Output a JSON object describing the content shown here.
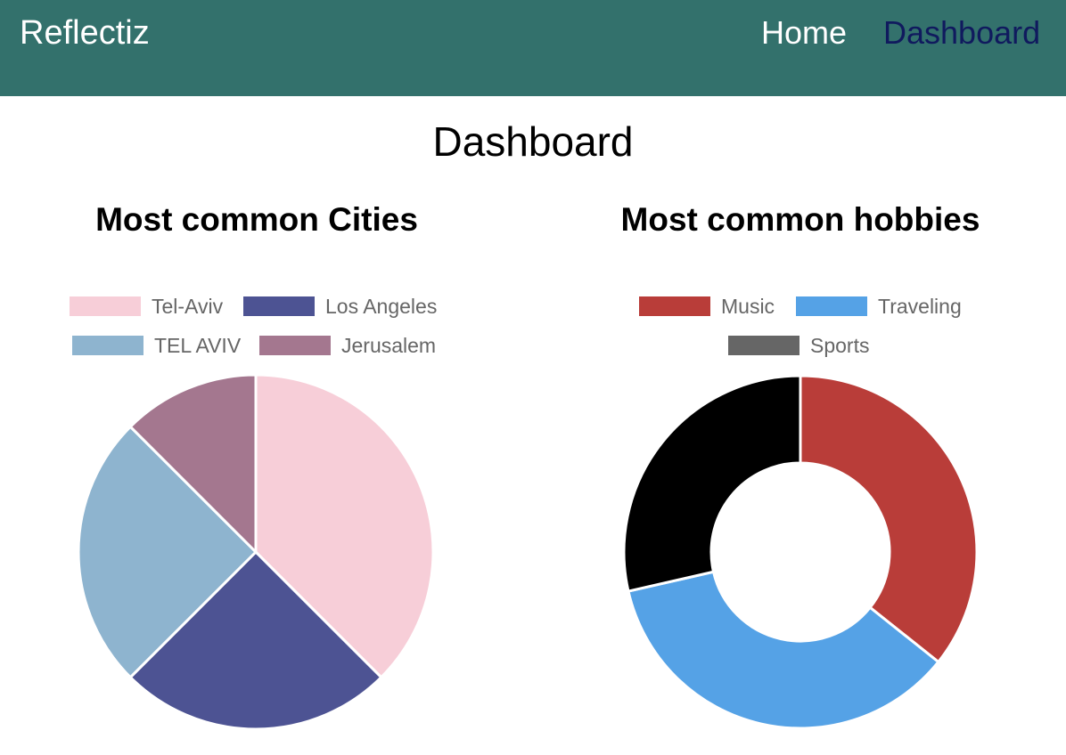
{
  "navbar": {
    "brand": "Reflectiz",
    "links": [
      {
        "label": "Home",
        "color": "#ffffff",
        "active": false
      },
      {
        "label": "Dashboard",
        "color": "#101a5e",
        "active": true
      }
    ],
    "background": "#33716c"
  },
  "page": {
    "title": "Dashboard"
  },
  "chart_data": [
    {
      "type": "pie",
      "title": "Most common Cities",
      "labels": [
        "Tel-Aviv",
        "Los Angeles",
        "TEL AVIV",
        "Jerusalem"
      ],
      "values": [
        3,
        2,
        2,
        1
      ],
      "colors": [
        "#f7ced8",
        "#4d5393",
        "#8eb4cf",
        "#a4778f"
      ],
      "legend_position": "top"
    },
    {
      "type": "doughnut",
      "title": "Most common hobbies",
      "labels": [
        "Music",
        "Traveling",
        "Sports"
      ],
      "values": [
        5,
        5,
        4
      ],
      "colors": [
        "#b93d39",
        "#55a2e6",
        "#000000"
      ],
      "legend_colors": [
        "#b93d39",
        "#55a2e6",
        "#666666"
      ],
      "legend_position": "top"
    }
  ]
}
